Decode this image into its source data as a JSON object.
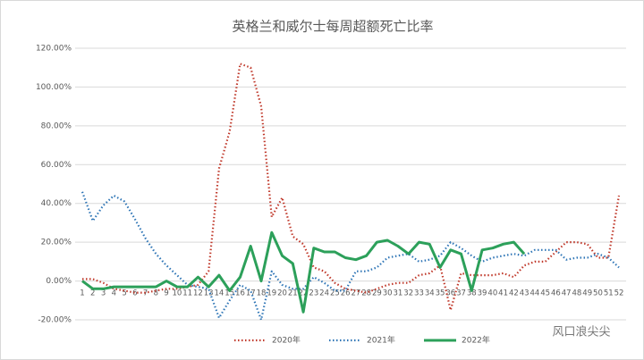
{
  "chart_data": {
    "type": "line",
    "title": "英格兰和威尔士每周超额死亡比率",
    "watermark": "风口浪尖尖",
    "categories": [
      "1",
      "2",
      "3",
      "4",
      "5",
      "6",
      "7",
      "8",
      "9",
      "10",
      "11",
      "12",
      "13",
      "14",
      "15",
      "16",
      "17",
      "18",
      "19",
      "20",
      "21",
      "22",
      "23",
      "24",
      "25",
      "26",
      "27",
      "28",
      "29",
      "30",
      "31",
      "32",
      "33",
      "34",
      "35",
      "36",
      "37",
      "38",
      "39",
      "40",
      "41",
      "42",
      "43",
      "44",
      "45",
      "46",
      "47",
      "48",
      "49",
      "50",
      "51",
      "52"
    ],
    "series": [
      {
        "name": "2020年",
        "color": "#c0392b",
        "dash": "dotted",
        "values": [
          1,
          1,
          -1,
          -4,
          -5,
          -6,
          -6,
          -5,
          -4,
          -4,
          -3,
          -2,
          5,
          58,
          77,
          112,
          110,
          90,
          33,
          43,
          23,
          19,
          7,
          5,
          -1,
          -4,
          -5,
          -6,
          -4,
          -2,
          -1,
          -1,
          3,
          4,
          8,
          -15,
          4,
          3,
          3,
          3,
          4,
          2,
          8,
          10,
          10,
          15,
          20,
          20,
          19,
          12,
          12,
          44
        ]
      },
      {
        "name": "2021年",
        "color": "#2e75b6",
        "dash": "dotted",
        "values": [
          46,
          31,
          39,
          44,
          41,
          32,
          22,
          14,
          8,
          3,
          -2,
          -3,
          -4,
          -19,
          -10,
          -2,
          -5,
          -20,
          5,
          -2,
          -4,
          -4,
          2,
          -1,
          -5,
          -5,
          5,
          5,
          7,
          12,
          13,
          14,
          10,
          11,
          13,
          20,
          17,
          13,
          10,
          12,
          13,
          14,
          13,
          16,
          16,
          16,
          11,
          12,
          12,
          14,
          12,
          7
        ]
      },
      {
        "name": "2022年",
        "color": "#2ca05a",
        "dash": "solid",
        "values": [
          0,
          -4,
          -4,
          -3,
          -3,
          -3,
          -3,
          -3,
          0,
          -3,
          -3,
          2,
          -3,
          3,
          -5,
          2,
          18,
          0,
          25,
          13,
          9,
          -16,
          17,
          15,
          15,
          12,
          11,
          13,
          20,
          21,
          18,
          14,
          20,
          19,
          7,
          16,
          14,
          -5,
          16,
          17,
          19,
          20,
          14,
          null,
          null,
          null,
          null,
          null,
          null,
          null,
          null,
          null
        ]
      }
    ],
    "ylim": [
      -20,
      120
    ],
    "yticks": [
      {
        "value": -20,
        "label": "-20.00%"
      },
      {
        "value": 0,
        "label": "0.00%"
      },
      {
        "value": 20,
        "label": "20.00%"
      },
      {
        "value": 40,
        "label": "40.00%"
      },
      {
        "value": 60,
        "label": "60.00%"
      },
      {
        "value": 80,
        "label": "80.00%"
      },
      {
        "value": 100,
        "label": "100.00%"
      },
      {
        "value": 120,
        "label": "120.00%"
      }
    ],
    "grid": true,
    "legend": "bottom"
  }
}
